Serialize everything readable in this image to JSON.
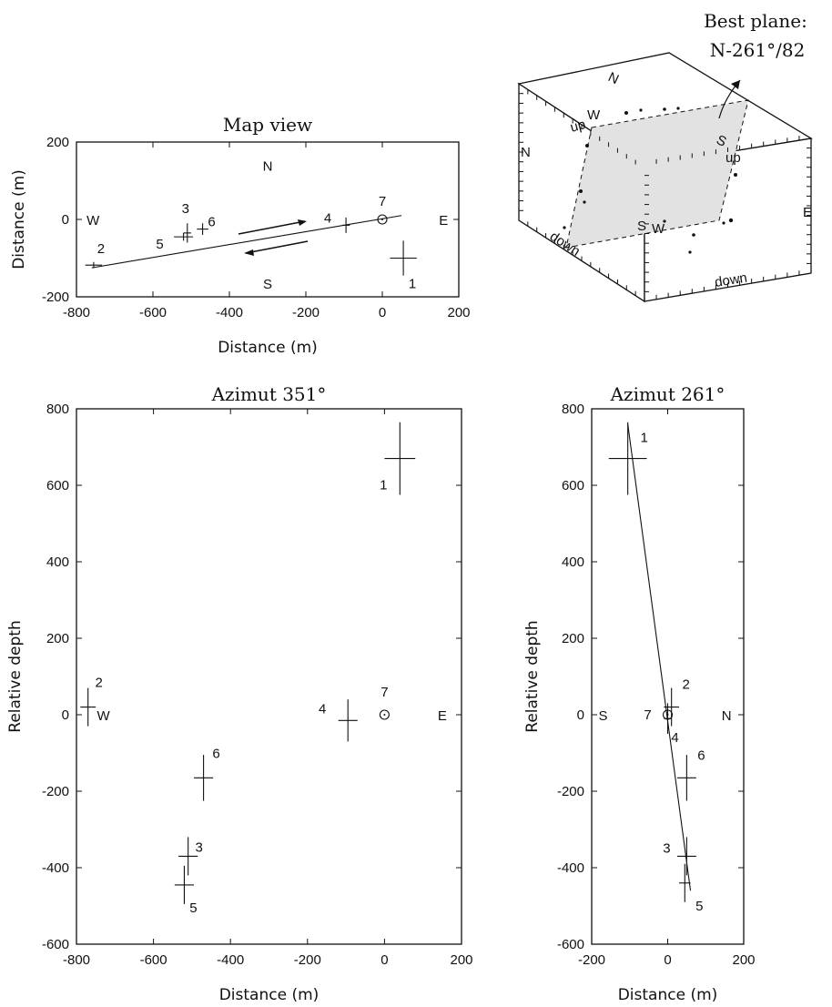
{
  "header": {
    "best_plane_line1": "Best plane:",
    "best_plane_line2": "N-261°/82"
  },
  "block": {
    "labels": [
      "N",
      "W",
      "up",
      "N",
      "S",
      "up",
      "E",
      "S",
      "W",
      "down",
      "down"
    ]
  },
  "chart_data": [
    {
      "type": "scatter",
      "title": "Map view",
      "xlabel": "Distance  (m)",
      "ylabel": "Distance  (m)",
      "xlim": [
        -800,
        200
      ],
      "ylim": [
        -200,
        200
      ],
      "xticks": [
        "-800",
        "-600",
        "-400",
        "-200",
        "0",
        "200"
      ],
      "yticks": [
        "200",
        "0",
        "-200"
      ],
      "compass": {
        "north": "N",
        "south": "S",
        "west": "W",
        "east": "E"
      },
      "points": [
        {
          "label": "1",
          "x": 55,
          "y": -100,
          "ex": 35,
          "ey": 45
        },
        {
          "label": "2",
          "x": -755,
          "y": -118,
          "ex": 22,
          "ey": 8
        },
        {
          "label": "3",
          "x": -510,
          "y": -35,
          "ex": 10,
          "ey": 25
        },
        {
          "label": "4",
          "x": -95,
          "y": -15,
          "ex": 10,
          "ey": 20
        },
        {
          "label": "5",
          "x": -520,
          "y": -45,
          "ex": 25,
          "ey": 10
        },
        {
          "label": "6",
          "x": -470,
          "y": -25,
          "ex": 15,
          "ey": 15
        },
        {
          "label": "7",
          "x": 0,
          "y": 0,
          "circle": true
        }
      ],
      "fault_line": [
        [
          -760,
          -125
        ],
        [
          50,
          10
        ]
      ]
    },
    {
      "type": "scatter",
      "title": "Azimut 351°",
      "xlabel": "Distance  (m)",
      "ylabel": "Relative  depth",
      "xlim": [
        -800,
        200
      ],
      "ylim": [
        -600,
        800
      ],
      "xticks": [
        "-800",
        "-600",
        "-400",
        "-200",
        "0",
        "200"
      ],
      "yticks": [
        "800",
        "600",
        "400",
        "200",
        "0",
        "-200",
        "-400",
        "-600"
      ],
      "side_left": "W",
      "side_right": "E",
      "points": [
        {
          "label": "1",
          "x": 40,
          "y": 670,
          "ex": 40,
          "ey": 95
        },
        {
          "label": "2",
          "x": -770,
          "y": 20,
          "ex": 20,
          "ey": 50
        },
        {
          "label": "3",
          "x": -510,
          "y": -370,
          "ex": 25,
          "ey": 50
        },
        {
          "label": "4",
          "x": -95,
          "y": -15,
          "ex": 25,
          "ey": 55
        },
        {
          "label": "5",
          "x": -520,
          "y": -445,
          "ex": 25,
          "ey": 50
        },
        {
          "label": "6",
          "x": -470,
          "y": -165,
          "ex": 25,
          "ey": 60
        },
        {
          "label": "7",
          "x": 0,
          "y": 0,
          "circle": true
        }
      ]
    },
    {
      "type": "scatter",
      "title": "Azimut 261°",
      "xlabel": "Distance  (m)",
      "ylabel": "Relative  depth",
      "xlim": [
        -200,
        200
      ],
      "ylim": [
        -600,
        800
      ],
      "xticks": [
        "-200",
        "0",
        "200"
      ],
      "yticks": [
        "800",
        "600",
        "400",
        "200",
        "0",
        "-200",
        "-400",
        "-600"
      ],
      "side_left": "S",
      "side_right": "N",
      "points": [
        {
          "label": "1",
          "x": -105,
          "y": 670,
          "ex": 50,
          "ey": 95
        },
        {
          "label": "2",
          "x": 10,
          "y": 20,
          "ex": 20,
          "ey": 50
        },
        {
          "label": "3",
          "x": 50,
          "y": -370,
          "ex": 25,
          "ey": 50
        },
        {
          "label": "4",
          "x": 0,
          "y": -10,
          "ex": 10,
          "ey": 40
        },
        {
          "label": "5",
          "x": 45,
          "y": -440,
          "ex": 15,
          "ey": 50
        },
        {
          "label": "6",
          "x": 50,
          "y": -165,
          "ex": 25,
          "ey": 60
        },
        {
          "label": "7",
          "x": 0,
          "y": 0,
          "circle": true
        }
      ],
      "fault_line": [
        [
          -105,
          760
        ],
        [
          60,
          -460
        ]
      ]
    }
  ]
}
